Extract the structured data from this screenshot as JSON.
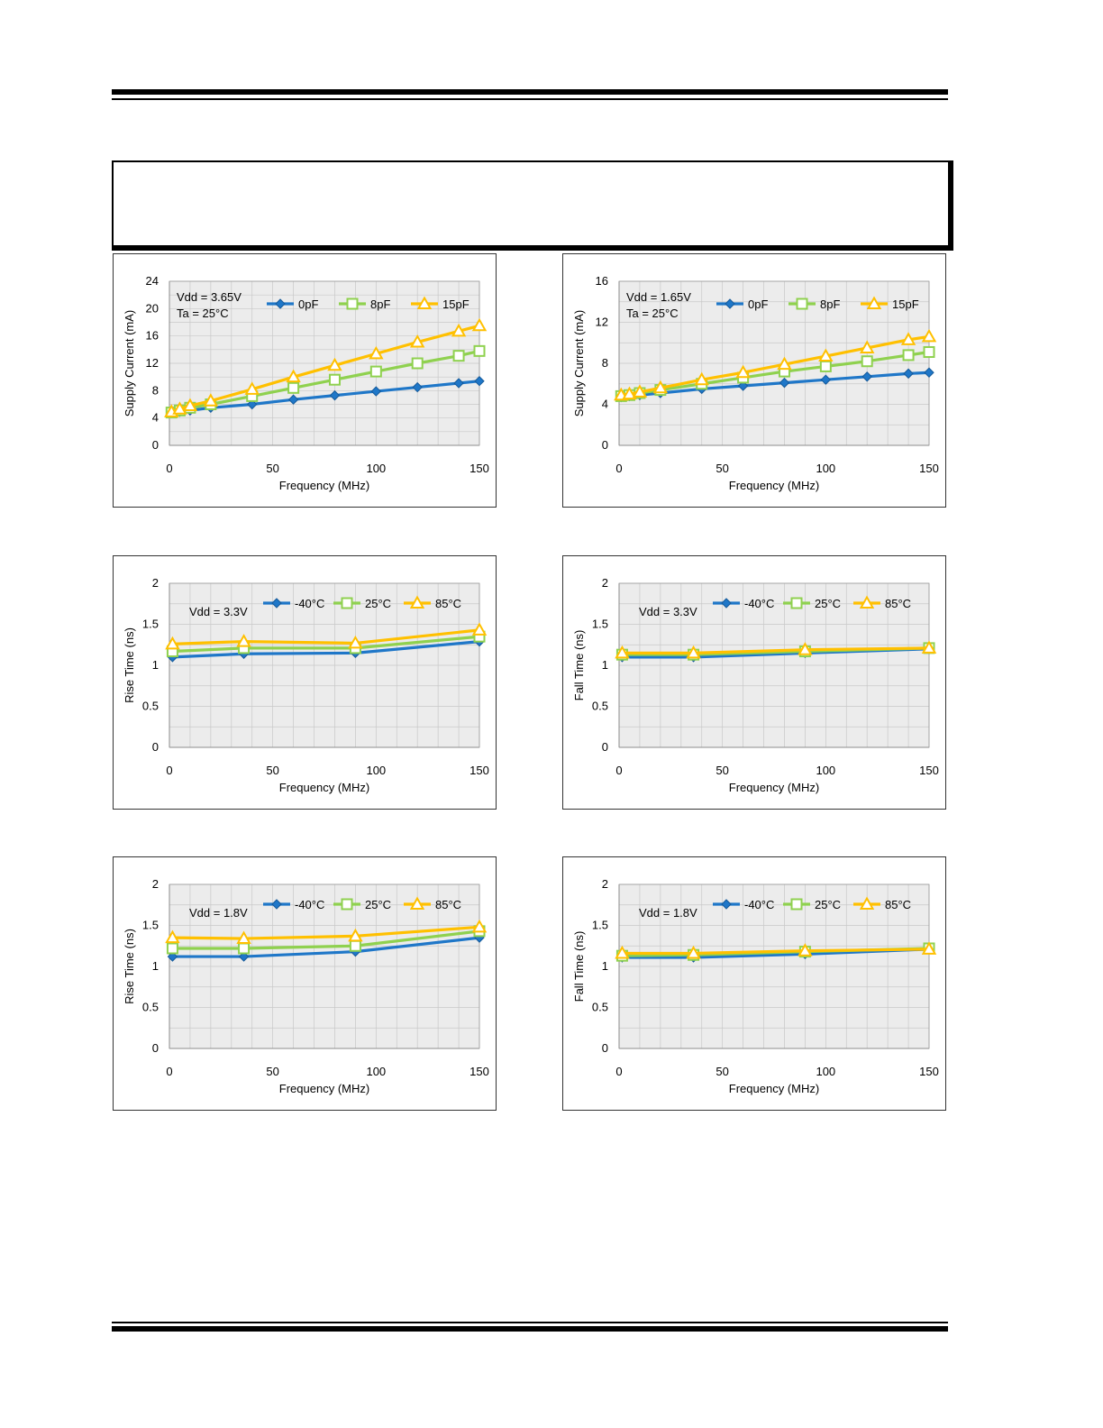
{
  "colors": {
    "blue": "#1f77c8",
    "green": "#8fd14f",
    "orange": "#ffc000",
    "plot_bg": "#ececec",
    "grid": "#c8c8c8"
  },
  "chart_data": [
    {
      "type": "line",
      "xlabel": "Frequency (MHz)",
      "ylabel": "Supply Current (mA)",
      "xlim": [
        0,
        150
      ],
      "ylim": [
        0,
        24
      ],
      "xticks": [
        0,
        50,
        100,
        150
      ],
      "yticks": [
        0,
        4,
        8,
        12,
        16,
        20,
        24
      ],
      "annotation": [
        "Vdd = 3.65V",
        "Ta = 25°C"
      ],
      "legend_position": "top",
      "grid": true,
      "series": [
        {
          "name": "0pF",
          "marker": "diamond",
          "color": "#1f77c8",
          "x": [
            1,
            5,
            10,
            20,
            40,
            60,
            80,
            100,
            120,
            140,
            150
          ],
          "y": [
            4.7,
            4.9,
            5.1,
            5.5,
            6.0,
            6.7,
            7.3,
            7.9,
            8.5,
            9.1,
            9.4
          ]
        },
        {
          "name": "8pF",
          "marker": "square",
          "color": "#8fd14f",
          "x": [
            1,
            5,
            10,
            20,
            40,
            60,
            80,
            100,
            120,
            140,
            150
          ],
          "y": [
            4.8,
            5.1,
            5.5,
            6.0,
            7.2,
            8.4,
            9.6,
            10.8,
            12.0,
            13.1,
            13.8
          ]
        },
        {
          "name": "15pF",
          "marker": "triangle",
          "color": "#ffc000",
          "x": [
            1,
            5,
            10,
            20,
            40,
            60,
            80,
            100,
            120,
            140,
            150
          ],
          "y": [
            4.9,
            5.3,
            5.8,
            6.5,
            8.2,
            10.0,
            11.7,
            13.4,
            15.1,
            16.7,
            17.5
          ]
        }
      ]
    },
    {
      "type": "line",
      "xlabel": "Frequency (MHz)",
      "ylabel": "Supply Current (mA)",
      "xlim": [
        0,
        150
      ],
      "ylim": [
        0,
        16
      ],
      "xticks": [
        0,
        50,
        100,
        150
      ],
      "yticks": [
        0,
        4,
        8,
        12,
        16
      ],
      "annotation": [
        "Vdd = 1.65V",
        "Ta = 25°C"
      ],
      "legend_position": "top",
      "grid": true,
      "series": [
        {
          "name": "0pF",
          "marker": "diamond",
          "color": "#1f77c8",
          "x": [
            1,
            5,
            10,
            20,
            40,
            60,
            80,
            100,
            120,
            140,
            150
          ],
          "y": [
            4.7,
            4.8,
            4.9,
            5.1,
            5.5,
            5.8,
            6.1,
            6.4,
            6.7,
            7.0,
            7.1
          ]
        },
        {
          "name": "8pF",
          "marker": "square",
          "color": "#8fd14f",
          "x": [
            1,
            5,
            10,
            20,
            40,
            60,
            80,
            100,
            120,
            140,
            150
          ],
          "y": [
            4.8,
            4.9,
            5.1,
            5.4,
            6.0,
            6.6,
            7.2,
            7.7,
            8.2,
            8.8,
            9.1
          ]
        },
        {
          "name": "15pF",
          "marker": "triangle",
          "color": "#ffc000",
          "x": [
            1,
            5,
            10,
            20,
            40,
            60,
            80,
            100,
            120,
            140,
            150
          ],
          "y": [
            4.9,
            5.0,
            5.2,
            5.6,
            6.4,
            7.1,
            7.9,
            8.7,
            9.5,
            10.3,
            10.6
          ]
        }
      ]
    },
    {
      "type": "line",
      "xlabel": "Frequency (MHz)",
      "ylabel": "Rise Time (ns)",
      "xlim": [
        0,
        150
      ],
      "ylim": [
        0,
        2
      ],
      "xticks": [
        0,
        50,
        100,
        150
      ],
      "yticks": [
        0,
        0.5,
        1,
        1.5,
        2
      ],
      "annotation": [
        "Vdd = 3.3V"
      ],
      "legend_position": "top",
      "grid": true,
      "series": [
        {
          "name": "-40°C",
          "marker": "diamond",
          "color": "#1f77c8",
          "x": [
            1.5,
            36,
            90,
            150
          ],
          "y": [
            1.1,
            1.14,
            1.15,
            1.29
          ]
        },
        {
          "name": "25°C",
          "marker": "square",
          "color": "#8fd14f",
          "x": [
            1.5,
            36,
            90,
            150
          ],
          "y": [
            1.17,
            1.21,
            1.21,
            1.35
          ]
        },
        {
          "name": "85°C",
          "marker": "triangle",
          "color": "#ffc000",
          "x": [
            1.5,
            36,
            90,
            150
          ],
          "y": [
            1.26,
            1.29,
            1.27,
            1.43
          ]
        }
      ]
    },
    {
      "type": "line",
      "xlabel": "Frequency (MHz)",
      "ylabel": "Fall Time (ns)",
      "xlim": [
        0,
        150
      ],
      "ylim": [
        0,
        2
      ],
      "xticks": [
        0,
        50,
        100,
        150
      ],
      "yticks": [
        0,
        0.5,
        1,
        1.5,
        2
      ],
      "annotation": [
        "Vdd = 3.3V"
      ],
      "legend_position": "top",
      "grid": true,
      "series": [
        {
          "name": "-40°C",
          "marker": "diamond",
          "color": "#1f77c8",
          "x": [
            1.5,
            36,
            90,
            150
          ],
          "y": [
            1.1,
            1.1,
            1.15,
            1.2
          ]
        },
        {
          "name": "25°C",
          "marker": "square",
          "color": "#8fd14f",
          "x": [
            1.5,
            36,
            90,
            150
          ],
          "y": [
            1.13,
            1.13,
            1.17,
            1.21
          ]
        },
        {
          "name": "85°C",
          "marker": "triangle",
          "color": "#ffc000",
          "x": [
            1.5,
            36,
            90,
            150
          ],
          "y": [
            1.15,
            1.15,
            1.19,
            1.21
          ]
        }
      ]
    },
    {
      "type": "line",
      "xlabel": "Frequency (MHz)",
      "ylabel": "Rise Time (ns)",
      "xlim": [
        0,
        150
      ],
      "ylim": [
        0,
        2
      ],
      "xticks": [
        0,
        50,
        100,
        150
      ],
      "yticks": [
        0,
        0.5,
        1,
        1.5,
        2
      ],
      "annotation": [
        "Vdd = 1.8V"
      ],
      "legend_position": "top",
      "grid": true,
      "series": [
        {
          "name": "-40°C",
          "marker": "diamond",
          "color": "#1f77c8",
          "x": [
            1.5,
            36,
            90,
            150
          ],
          "y": [
            1.12,
            1.12,
            1.18,
            1.35
          ]
        },
        {
          "name": "25°C",
          "marker": "square",
          "color": "#8fd14f",
          "x": [
            1.5,
            36,
            90,
            150
          ],
          "y": [
            1.22,
            1.22,
            1.25,
            1.43
          ]
        },
        {
          "name": "85°C",
          "marker": "triangle",
          "color": "#ffc000",
          "x": [
            1.5,
            36,
            90,
            150
          ],
          "y": [
            1.35,
            1.34,
            1.37,
            1.48
          ]
        }
      ]
    },
    {
      "type": "line",
      "xlabel": "Frequency (MHz)",
      "ylabel": "Fall Time (ns)",
      "xlim": [
        0,
        150
      ],
      "ylim": [
        0,
        2
      ],
      "xticks": [
        0,
        50,
        100,
        150
      ],
      "yticks": [
        0,
        0.5,
        1,
        1.5,
        2
      ],
      "annotation": [
        "Vdd = 1.8V"
      ],
      "legend_position": "top",
      "grid": true,
      "series": [
        {
          "name": "-40°C",
          "marker": "diamond",
          "color": "#1f77c8",
          "x": [
            1.5,
            36,
            90,
            150
          ],
          "y": [
            1.11,
            1.11,
            1.15,
            1.21
          ]
        },
        {
          "name": "25°C",
          "marker": "square",
          "color": "#8fd14f",
          "x": [
            1.5,
            36,
            90,
            150
          ],
          "y": [
            1.13,
            1.14,
            1.18,
            1.22
          ]
        },
        {
          "name": "85°C",
          "marker": "triangle",
          "color": "#ffc000",
          "x": [
            1.5,
            36,
            90,
            150
          ],
          "y": [
            1.16,
            1.16,
            1.19,
            1.21
          ]
        }
      ]
    }
  ]
}
